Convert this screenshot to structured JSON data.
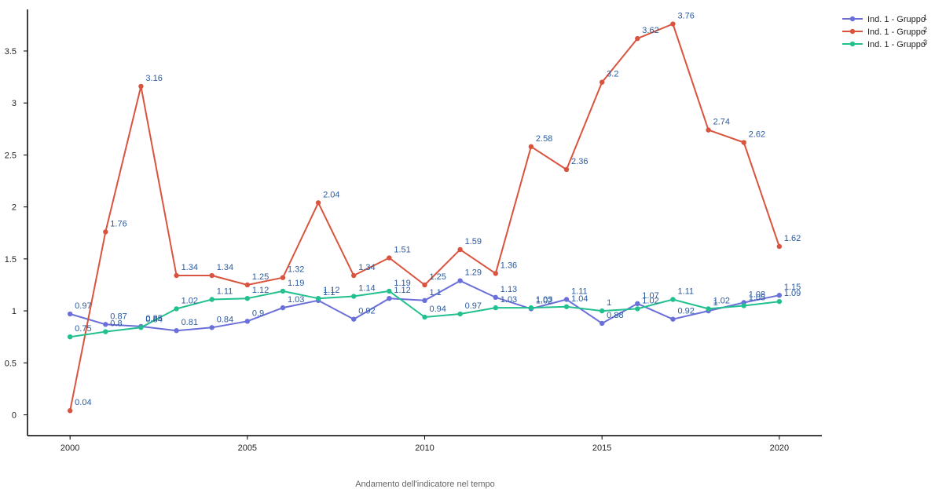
{
  "caption": "Andamento dell'indicatore nel tempo",
  "chart_data": {
    "type": "line",
    "xlabel": "Andamento dell'indicatore nel tempo",
    "ylabel": "",
    "x": [
      2000,
      2001,
      2002,
      2003,
      2004,
      2005,
      2006,
      2007,
      2008,
      2009,
      2010,
      2011,
      2012,
      2013,
      2014,
      2015,
      2016,
      2017,
      2018,
      2019,
      2020
    ],
    "xlim": [
      1998.8,
      2021.2
    ],
    "ylim": [
      -0.2,
      3.9
    ],
    "x_ticks": [
      2000,
      2005,
      2010,
      2015,
      2020
    ],
    "y_ticks": [
      0,
      0.5,
      1,
      1.5,
      2,
      2.5,
      3,
      3.5
    ],
    "y_tick_labels": [
      "0",
      "0.5",
      "1",
      "1.5",
      "2",
      "2.5",
      "3",
      "3.5"
    ],
    "grid": false,
    "legend_position": "top-right",
    "series": [
      {
        "name": "Ind. 1 - Gruppo",
        "sup": "1",
        "color": "#6b6fd9",
        "values": [
          0.97,
          0.87,
          0.85,
          0.81,
          0.84,
          0.9,
          1.03,
          1.1,
          0.92,
          1.12,
          1.1,
          1.29,
          1.13,
          1.02,
          1.11,
          0.88,
          1.07,
          0.92,
          1.0,
          1.08,
          1.15
        ]
      },
      {
        "name": "Ind. 1 - Gruppo",
        "sup": "2",
        "color": "#d9543e",
        "values": [
          0.04,
          1.76,
          3.16,
          1.34,
          1.34,
          1.25,
          1.32,
          2.04,
          1.34,
          1.51,
          1.25,
          1.59,
          1.36,
          2.58,
          2.36,
          3.2,
          3.62,
          3.76,
          2.74,
          2.62,
          1.62
        ]
      },
      {
        "name": "Ind. 1 - Gruppo",
        "sup": "3",
        "color": "#22c08f",
        "values": [
          0.75,
          0.8,
          0.84,
          1.02,
          1.11,
          1.12,
          1.19,
          1.12,
          1.14,
          1.19,
          0.94,
          0.97,
          1.03,
          1.03,
          1.04,
          1.0,
          1.02,
          1.11,
          1.02,
          1.05,
          1.09
        ]
      }
    ],
    "label_color": "#2a5aa0"
  }
}
